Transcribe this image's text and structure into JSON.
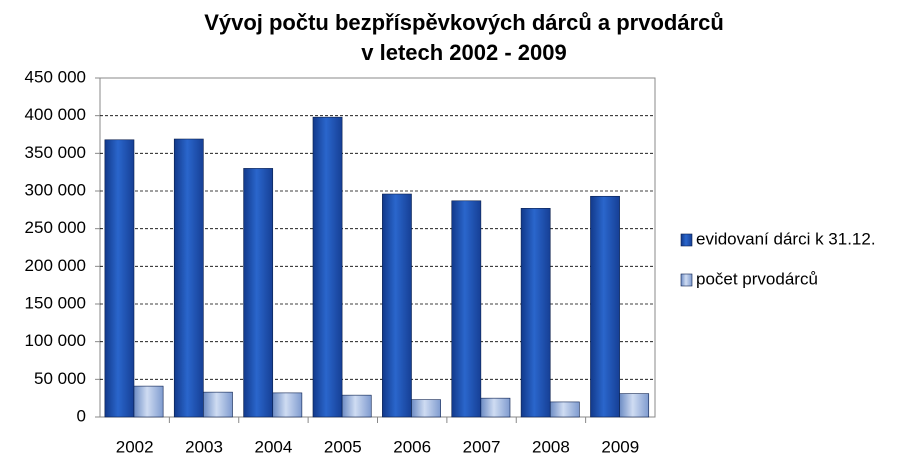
{
  "chart_data": {
    "type": "bar",
    "title": [
      "Vývoj počtu bezpříspěvkových dárců a prvodárců",
      "v letech 2002 - 2009"
    ],
    "categories": [
      "2002",
      "2003",
      "2004",
      "2005",
      "2006",
      "2007",
      "2008",
      "2009"
    ],
    "series": [
      {
        "name": "evidovaní dárci k 31.12.",
        "color": "#1f56b8",
        "values": [
          368000,
          369000,
          330000,
          398000,
          296000,
          287000,
          277000,
          293000
        ]
      },
      {
        "name": "počet prvodárců",
        "color": "#9db6e0",
        "values": [
          41000,
          33000,
          32000,
          29000,
          23000,
          25000,
          20000,
          31000
        ]
      }
    ],
    "ylim": [
      0,
      450000
    ],
    "yticks": [
      0,
      {
        "value": 50000,
        "label": "50 000"
      },
      {
        "value": 100000,
        "label": "100 000"
      },
      {
        "value": 150000,
        "label": "150 000"
      },
      {
        "value": 200000,
        "label": "200 000"
      },
      {
        "value": 250000,
        "label": "250 000"
      },
      {
        "value": 300000,
        "label": "300 000"
      },
      {
        "value": 350000,
        "label": "350 000"
      },
      {
        "value": 400000,
        "label": "400 000"
      },
      {
        "value": 450000,
        "label": "450 000"
      }
    ],
    "grid": true,
    "legend": "right"
  }
}
